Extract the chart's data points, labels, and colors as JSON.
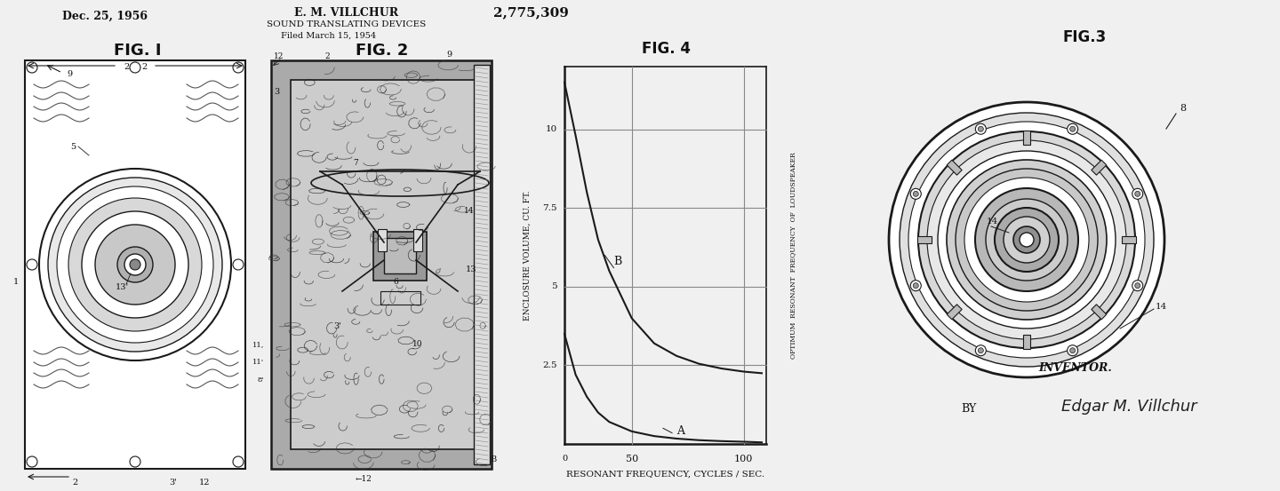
{
  "bg_color": "#f0f0f0",
  "title_line1": "Dec. 25, 1956",
  "title_center": "E. M. VILLCHUR",
  "title_right": "2,775,309",
  "subtitle1": "SOUND TRANSLATING DEVICES",
  "subtitle2": "Filed March 15, 1954",
  "fig1_label": "FIG. I",
  "fig2_label": "FIG. 2",
  "fig3_label": "FIG.3",
  "fig4_label": "FIG. 4",
  "inventor_label": "INVENTOR.",
  "by_label": "BY",
  "signature": "Edgar M. Villchur",
  "graph_xlabel": "RESONANT FREQUENCY, CYCLES / SEC.",
  "graph_ylabel": "ENCLOSURE VOLUME, CU. FT.",
  "graph_ylabel2": "OPTIMUM  RESONANT  FREQUENCY  OF  LOUDSPEAKER",
  "curve_B_x": [
    20,
    25,
    30,
    35,
    40,
    50,
    60,
    70,
    80,
    90,
    100,
    108
  ],
  "curve_B_y": [
    11.5,
    9.8,
    8.0,
    6.5,
    5.5,
    4.0,
    3.2,
    2.8,
    2.55,
    2.4,
    2.3,
    2.25
  ],
  "curve_A_x": [
    20,
    25,
    30,
    35,
    40,
    50,
    60,
    70,
    80,
    90,
    100,
    108
  ],
  "curve_A_y": [
    3.5,
    2.2,
    1.5,
    1.0,
    0.7,
    0.4,
    0.25,
    0.17,
    0.12,
    0.09,
    0.07,
    0.05
  ],
  "line_color": "#1a1a1a",
  "text_color": "#111111"
}
